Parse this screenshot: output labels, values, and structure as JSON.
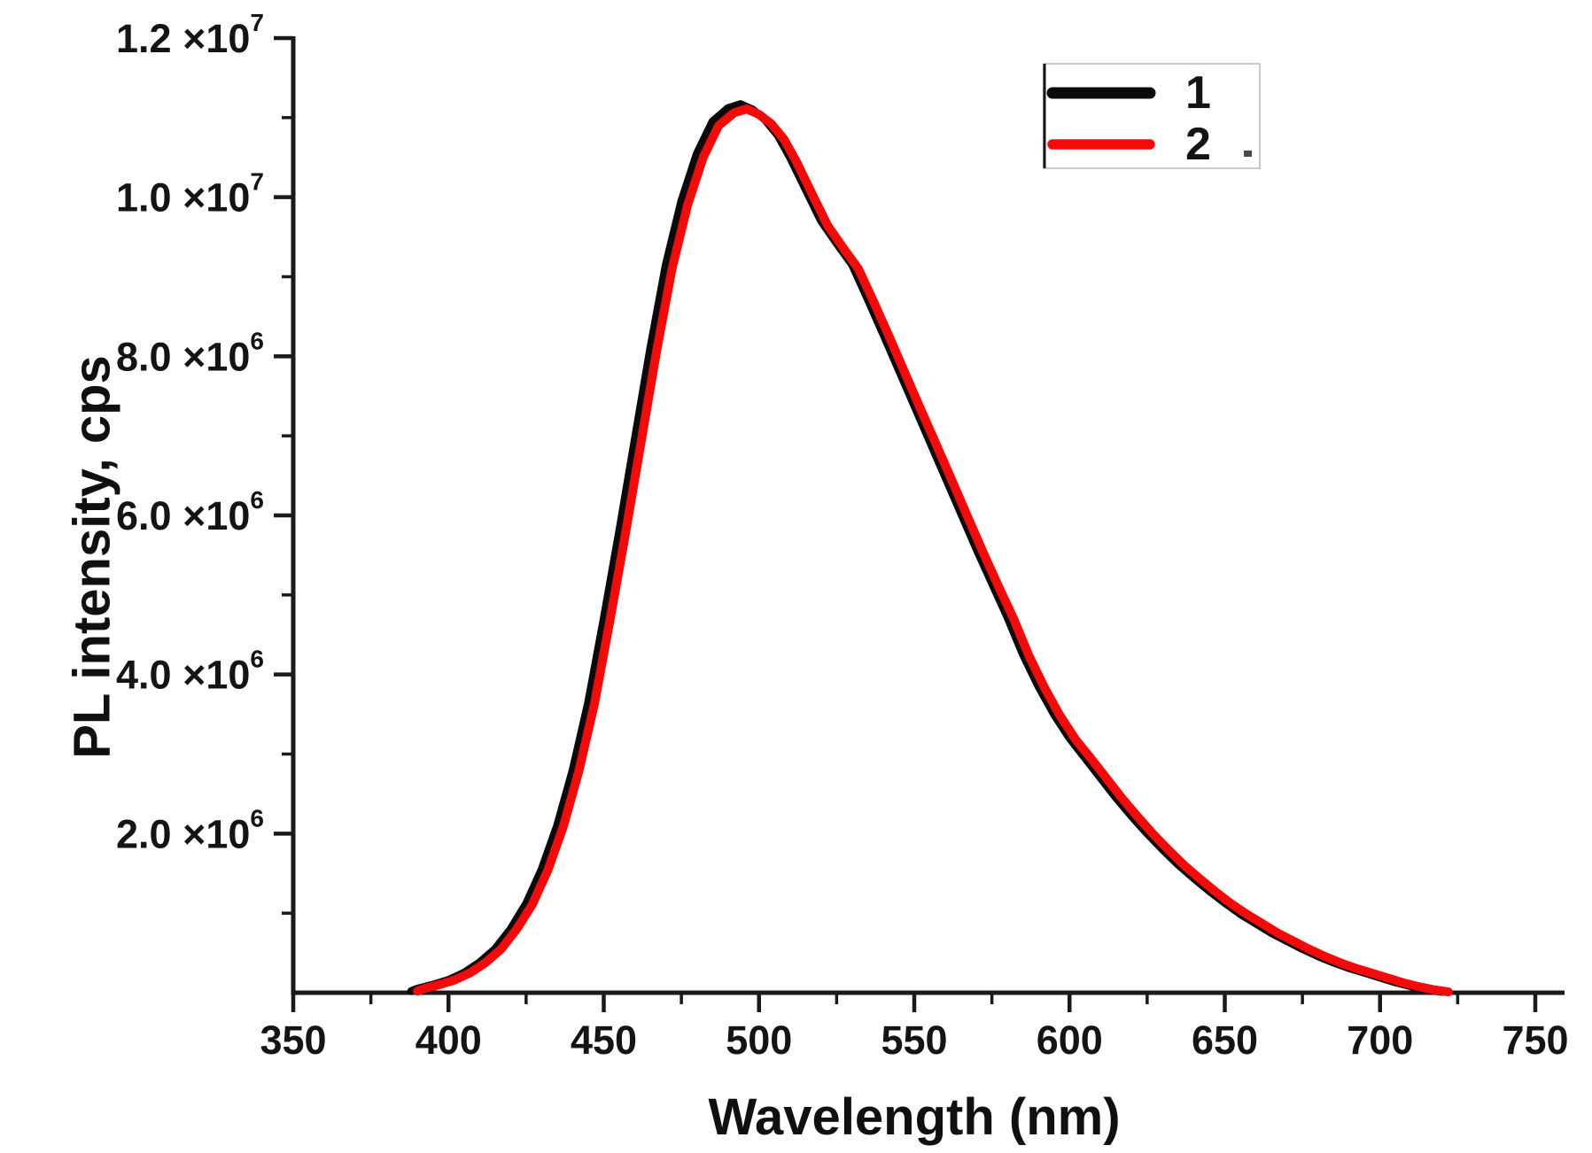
{
  "figure": {
    "background": "#ffffff"
  },
  "chart_data": {
    "type": "line",
    "title": "",
    "xlabel": "Wavelength (nm)",
    "ylabel": "PL intensity, cps",
    "xlim": [
      350,
      750
    ],
    "ylim": [
      0,
      12000000
    ],
    "grid": false,
    "legend_position": "top-right",
    "axis_color": "#1a1a1a",
    "x_ticks_major": [
      350,
      400,
      450,
      500,
      550,
      600,
      650,
      700,
      750
    ],
    "x_ticks_minor": [
      375,
      425,
      475,
      525,
      575,
      625,
      675,
      725
    ],
    "x_tick_labels": [
      "350",
      "400",
      "450",
      "500",
      "550",
      "600",
      "650",
      "700",
      "750"
    ],
    "y_ticks_major": [
      2000000,
      4000000,
      6000000,
      8000000,
      10000000,
      12000000
    ],
    "y_ticks_minor": [
      1000000,
      3000000,
      5000000,
      7000000,
      9000000,
      11000000
    ],
    "y_tick_labels": [
      {
        "value": 12000000,
        "mantissa": "1.2",
        "exponent": "7"
      },
      {
        "value": 10000000,
        "mantissa": "1.0",
        "exponent": "7"
      },
      {
        "value": 8000000,
        "mantissa": "8.0",
        "exponent": "6"
      },
      {
        "value": 6000000,
        "mantissa": "6.0",
        "exponent": "6"
      },
      {
        "value": 4000000,
        "mantissa": "4.0",
        "exponent": "6"
      },
      {
        "value": 2000000,
        "mantissa": "2.0",
        "exponent": "6"
      }
    ],
    "y_value_scale": 1000000,
    "legend": [
      {
        "label": "1",
        "color": "#0a0a0a",
        "swatch_width": 13
      },
      {
        "label": "2",
        "color": "#f50a0a",
        "swatch_width": 11.5
      }
    ],
    "series": [
      {
        "name": "1",
        "color": "#0a0a0a",
        "line_width": 9,
        "x_nm": [
          388,
          390,
          395,
          400,
          405,
          410,
          415,
          420,
          425,
          430,
          435,
          440,
          445,
          450,
          455,
          460,
          465,
          470,
          475,
          480,
          485,
          490,
          494,
          498,
          502,
          506,
          510,
          515,
          520,
          525,
          530,
          535,
          540,
          545,
          550,
          555,
          560,
          565,
          570,
          575,
          580,
          585,
          590,
          595,
          600,
          605,
          610,
          615,
          620,
          625,
          630,
          635,
          640,
          645,
          650,
          655,
          660,
          665,
          670,
          675,
          680,
          685,
          690,
          695,
          700,
          705,
          710,
          715,
          720
        ],
        "y_cps_millions": [
          0.02,
          0.05,
          0.1,
          0.16,
          0.25,
          0.38,
          0.55,
          0.8,
          1.12,
          1.55,
          2.1,
          2.8,
          3.65,
          4.7,
          5.8,
          6.95,
          8.1,
          9.15,
          9.95,
          10.55,
          10.95,
          11.12,
          11.17,
          11.1,
          10.97,
          10.78,
          10.5,
          10.1,
          9.7,
          9.42,
          9.15,
          8.72,
          8.28,
          7.83,
          7.38,
          6.93,
          6.48,
          6.03,
          5.58,
          5.15,
          4.72,
          4.25,
          3.85,
          3.5,
          3.2,
          2.95,
          2.7,
          2.45,
          2.22,
          2.0,
          1.8,
          1.61,
          1.44,
          1.28,
          1.13,
          0.99,
          0.87,
          0.75,
          0.65,
          0.55,
          0.46,
          0.38,
          0.31,
          0.25,
          0.19,
          0.13,
          0.08,
          0.04,
          0.01
        ]
      },
      {
        "name": "2",
        "color": "#f50a0a",
        "line_width": 10,
        "x_nm": [
          390,
          392,
          397,
          402,
          407,
          412,
          417,
          422,
          427,
          432,
          437,
          442,
          447,
          452,
          457,
          462,
          467,
          472,
          477,
          482,
          487,
          492,
          496,
          500,
          504,
          508,
          512,
          517,
          522,
          527,
          532,
          537,
          542,
          547,
          552,
          557,
          562,
          567,
          572,
          577,
          582,
          587,
          592,
          597,
          602,
          607,
          612,
          617,
          622,
          627,
          632,
          637,
          642,
          647,
          652,
          657,
          662,
          667,
          672,
          677,
          682,
          687,
          692,
          697,
          702,
          707,
          712,
          717,
          722
        ],
        "y_cps_millions": [
          0.02,
          0.05,
          0.1,
          0.16,
          0.25,
          0.38,
          0.55,
          0.8,
          1.11,
          1.54,
          2.09,
          2.79,
          3.63,
          4.68,
          5.77,
          6.92,
          8.06,
          9.1,
          9.9,
          10.5,
          10.9,
          11.06,
          11.11,
          11.04,
          10.92,
          10.73,
          10.45,
          10.05,
          9.65,
          9.37,
          9.1,
          8.68,
          8.24,
          7.79,
          7.34,
          6.9,
          6.45,
          6.0,
          5.55,
          5.12,
          4.7,
          4.23,
          3.83,
          3.48,
          3.18,
          2.94,
          2.69,
          2.44,
          2.21,
          1.99,
          1.79,
          1.6,
          1.43,
          1.27,
          1.12,
          0.99,
          0.87,
          0.75,
          0.65,
          0.55,
          0.46,
          0.38,
          0.31,
          0.25,
          0.19,
          0.13,
          0.08,
          0.04,
          0.01
        ]
      }
    ]
  }
}
